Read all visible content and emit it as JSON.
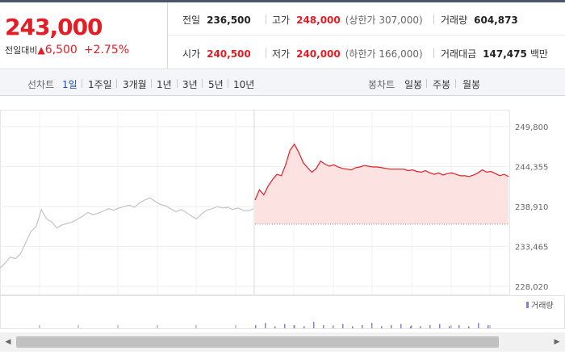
{
  "quote": {
    "current_price": "243,000",
    "change_label": "전일대비",
    "change_arrow": "▲",
    "change_value": "6,500",
    "change_percent": "+2.75%"
  },
  "stats": {
    "prev_close": {
      "label": "전일",
      "value": "236,500"
    },
    "high": {
      "label": "고가",
      "value": "248,000",
      "sub": "(상한가 307,000)"
    },
    "volume": {
      "label": "거래량",
      "value": "604,873"
    },
    "open": {
      "label": "시가",
      "value": "240,500"
    },
    "low": {
      "label": "저가",
      "value": "240,000",
      "sub": "(하한가 166,000)"
    },
    "amount": {
      "label": "거래대금",
      "value": "147,475",
      "unit": "백만"
    }
  },
  "tabs": {
    "line_label": "선차트",
    "line_items": [
      "1일",
      "1주일",
      "3개월",
      "1년",
      "3년",
      "5년",
      "10년"
    ],
    "active_index": 0,
    "candle_label": "봉차트",
    "candle_items": [
      "일봉",
      "주봉",
      "월봉"
    ]
  },
  "chart_data": {
    "type": "line",
    "y_ticks": [
      "249,800",
      "244,355",
      "238,910",
      "233,465",
      "228,020"
    ],
    "ylim": [
      228020,
      249800
    ],
    "prev_close": 236500,
    "prev_day_series": [
      230500,
      231200,
      232000,
      231800,
      232500,
      234000,
      235500,
      236200,
      238500,
      237200,
      236800,
      236000,
      236400,
      236600,
      236800,
      237200,
      237600,
      238100,
      237800,
      238000,
      238300,
      238600,
      238400,
      238700,
      238900,
      239100,
      238800,
      239400,
      239800,
      240100,
      239600,
      239200,
      239000,
      238600,
      238200,
      238500,
      238100,
      237600,
      237200,
      237900,
      238400,
      238600,
      238900,
      238700,
      238800,
      238500,
      238700,
      238400,
      238300,
      238600
    ],
    "today_series": [
      239800,
      241200,
      240500,
      241700,
      242600,
      243300,
      243100,
      244600,
      246600,
      247400,
      246300,
      244900,
      244200,
      243600,
      244100,
      245100,
      244700,
      244400,
      244600,
      244300,
      244100,
      244000,
      243900,
      244200,
      244300,
      244500,
      244400,
      244300,
      244300,
      244200,
      244100,
      244000,
      244000,
      244000,
      244000,
      243800,
      243900,
      243700,
      243600,
      243800,
      243500,
      243300,
      243500,
      243200,
      243400,
      243500,
      243300,
      243100,
      243100,
      243000,
      243200,
      243500,
      243900,
      243600,
      243700,
      243400,
      243100,
      243300,
      243000
    ],
    "volume_legend": "거래량",
    "volume_series": [
      3,
      5,
      2,
      4,
      3,
      2,
      6,
      3,
      2,
      4,
      2,
      3,
      5,
      2,
      3,
      4,
      2,
      2,
      3,
      4,
      2,
      3,
      2,
      5,
      3
    ]
  }
}
